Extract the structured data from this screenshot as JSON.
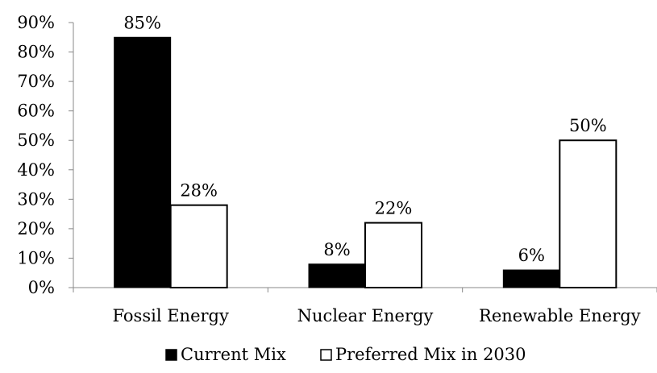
{
  "chart_data": {
    "type": "bar",
    "categories": [
      "Fossil Energy",
      "Nuclear Energy",
      "Renewable Energy"
    ],
    "series": [
      {
        "name": "Current Mix",
        "values": [
          85,
          8,
          6
        ],
        "labels": [
          "85%",
          "8%",
          "6%"
        ],
        "color": "#000000"
      },
      {
        "name": "Preferred Mix in 2030",
        "values": [
          28,
          22,
          50
        ],
        "labels": [
          "28%",
          "22%",
          "50%"
        ],
        "color": "#ffffff"
      }
    ],
    "ylim": [
      0,
      90
    ],
    "yticks": [
      0,
      10,
      20,
      30,
      40,
      50,
      60,
      70,
      80,
      90
    ],
    "ytick_labels": [
      "0%",
      "10%",
      "20%",
      "30%",
      "40%",
      "50%",
      "60%",
      "70%",
      "80%",
      "90%"
    ],
    "grid": false,
    "legend_position": "bottom",
    "title": "",
    "xlabel": "",
    "ylabel": ""
  }
}
